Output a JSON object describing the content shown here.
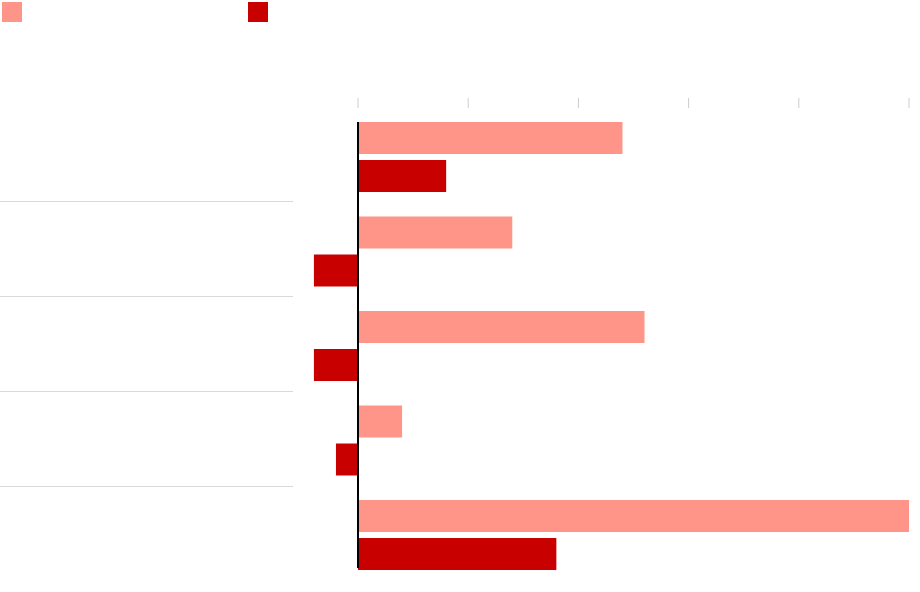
{
  "chart_data": {
    "type": "bar",
    "orientation": "horizontal",
    "categories": [
      null,
      null,
      null,
      null,
      null
    ],
    "series": [
      {
        "color": "#ff9488",
        "values": [
          24,
          14,
          26,
          4,
          50
        ]
      },
      {
        "color": "#c80000",
        "values": [
          8,
          -4,
          -4,
          -2,
          18
        ]
      }
    ],
    "xlim": [
      0,
      50
    ],
    "xticks": [
      0,
      10,
      20,
      30,
      40,
      50
    ]
  }
}
